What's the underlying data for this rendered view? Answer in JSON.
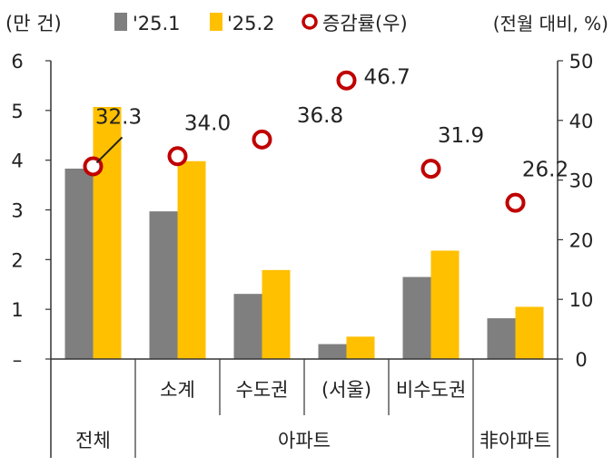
{
  "chart_data": {
    "type": "bar",
    "left_unit": "(만 건)",
    "right_unit": "(전월 대비, %)",
    "legend": [
      "'25.1",
      "'25.2",
      "증감률(우)"
    ],
    "colors": {
      "s1": "#7f7f7f",
      "s2": "#ffc000",
      "growth": "#c00000"
    },
    "categories": [
      "전체",
      "소계",
      "수도권",
      "(서울)",
      "비수도권",
      "非아파트"
    ],
    "groups": [
      {
        "label": "전체",
        "span": [
          0,
          0
        ]
      },
      {
        "label": "아파트",
        "span": [
          1,
          4
        ]
      },
      {
        "label": "非아파트",
        "span": [
          5,
          5
        ]
      }
    ],
    "series": [
      {
        "name": "'25.1",
        "axis": "left",
        "values": [
          3.83,
          2.97,
          1.31,
          0.3,
          1.65,
          0.82
        ]
      },
      {
        "name": "'25.2",
        "axis": "left",
        "values": [
          5.07,
          3.98,
          1.79,
          0.45,
          2.18,
          1.05
        ]
      },
      {
        "name": "증감률(우)",
        "axis": "right",
        "values": [
          32.3,
          34.0,
          36.8,
          46.7,
          31.9,
          26.2
        ]
      }
    ],
    "growth_labels": [
      "32.3",
      "34.0",
      "36.8",
      "46.7",
      "31.9",
      "26.2"
    ],
    "y_left": {
      "lim": [
        0,
        6
      ],
      "ticks": [
        "–",
        "1",
        "2",
        "3",
        "4",
        "5",
        "6"
      ]
    },
    "y_right": {
      "lim": [
        0,
        50
      ],
      "ticks": [
        "0",
        "10",
        "20",
        "30",
        "40",
        "50"
      ]
    }
  }
}
